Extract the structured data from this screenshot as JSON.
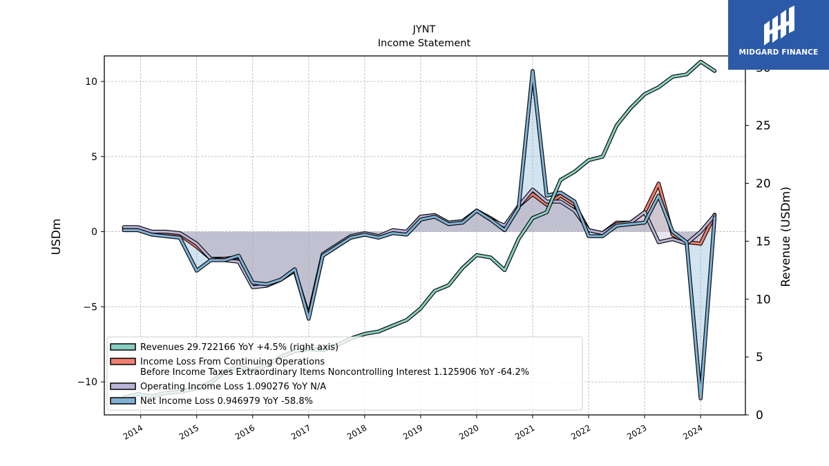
{
  "chart_data": {
    "type": "line",
    "title": "JYNT",
    "subtitle": "Income Statement",
    "ylabel": "USDm",
    "ylabel_right": "Revenue (USDm)",
    "ylim": [
      -12.2,
      11.7
    ],
    "ylim_right": [
      0,
      31.0
    ],
    "yticks": [
      -10,
      -5,
      0,
      5,
      10
    ],
    "yticks_right": [
      0,
      5,
      10,
      15,
      20,
      25,
      30
    ],
    "xlim": [
      2013.35,
      2024.8
    ],
    "xticks": [
      2014,
      2015,
      2016,
      2017,
      2018,
      2019,
      2020,
      2021,
      2022,
      2023,
      2024
    ],
    "x": [
      2013.7,
      2013.95,
      2014.2,
      2014.45,
      2014.7,
      2015.0,
      2015.25,
      2015.5,
      2015.75,
      2016.0,
      2016.25,
      2016.5,
      2016.75,
      2017.0,
      2017.25,
      2017.5,
      2017.75,
      2018.0,
      2018.25,
      2018.5,
      2018.75,
      2019.0,
      2019.25,
      2019.5,
      2019.75,
      2020.0,
      2020.25,
      2020.5,
      2020.75,
      2021.0,
      2021.25,
      2021.5,
      2021.75,
      2022.0,
      2022.25,
      2022.5,
      2022.75,
      2023.0,
      2023.25,
      2023.5,
      2023.75,
      2024.0,
      2024.25
    ],
    "grid": true,
    "legend_position": "lower-left",
    "series": [
      {
        "name": "Revenues  29.722166 YoY +4.5% (right axis)",
        "axis": "right",
        "color": "#88cfc0",
        "values": [
          1.5,
          1.8,
          1.6,
          1.9,
          2.0,
          2.3,
          2.8,
          3.7,
          4.2,
          3.8,
          4.3,
          5.0,
          5.5,
          5.7,
          5.6,
          6.0,
          6.6,
          7.0,
          7.2,
          7.7,
          8.2,
          9.2,
          10.7,
          11.2,
          12.7,
          13.8,
          13.6,
          12.5,
          15.2,
          17.0,
          17.5,
          20.3,
          21.0,
          22.0,
          22.3,
          25.0,
          26.5,
          27.7,
          28.3,
          29.2,
          29.4,
          30.5,
          29.7
        ]
      },
      {
        "name": "Income Loss From Continuing Operations\nBefore Income Taxes Extraordinary Items Noncontrolling Interest  1.125906 YoY -64.2%",
        "axis": "left",
        "color": "#f08070",
        "values": [
          0.2,
          0.2,
          -0.1,
          -0.1,
          -0.2,
          -1.0,
          -1.8,
          -1.8,
          -1.7,
          -3.6,
          -3.6,
          -3.2,
          -2.6,
          -5.7,
          -1.6,
          -1.0,
          -0.4,
          -0.2,
          -0.3,
          0.0,
          0.0,
          1.0,
          1.1,
          0.6,
          0.7,
          1.4,
          0.9,
          0.3,
          1.7,
          2.5,
          1.8,
          2.4,
          1.8,
          0.1,
          -0.1,
          0.6,
          0.6,
          1.3,
          3.2,
          -0.2,
          -0.7,
          -0.8,
          1.13
        ]
      },
      {
        "name": "Operating Income Loss  1.090276 YoY N/A",
        "axis": "left",
        "color": "#b8b4d8",
        "values": [
          0.3,
          0.3,
          0.0,
          0.0,
          -0.1,
          -0.8,
          -1.8,
          -1.9,
          -2.0,
          -3.7,
          -3.6,
          -3.2,
          -2.6,
          -5.6,
          -1.5,
          -0.9,
          -0.3,
          -0.1,
          -0.3,
          0.1,
          0.0,
          1.0,
          1.1,
          0.6,
          0.7,
          1.4,
          0.8,
          0.4,
          1.7,
          2.8,
          2.0,
          2.0,
          1.4,
          0.1,
          -0.1,
          0.5,
          0.6,
          1.3,
          -0.7,
          -0.5,
          -0.8,
          0.0,
          1.09
        ]
      },
      {
        "name": "Net Income Loss  0.946979 YoY -58.8%",
        "axis": "left",
        "color": "#7fb1d4",
        "values": [
          0.1,
          0.1,
          -0.2,
          -0.3,
          -0.4,
          -2.6,
          -1.9,
          -1.9,
          -1.6,
          -3.4,
          -3.5,
          -3.2,
          -2.5,
          -5.8,
          -1.6,
          -1.0,
          -0.4,
          -0.2,
          -0.4,
          -0.1,
          -0.2,
          0.8,
          1.0,
          0.5,
          0.6,
          1.4,
          0.8,
          0.1,
          1.6,
          10.7,
          2.4,
          2.6,
          2.0,
          -0.3,
          -0.3,
          0.4,
          0.5,
          0.6,
          2.4,
          0.0,
          -0.7,
          -11.1,
          0.95
        ]
      }
    ]
  },
  "logo": {
    "name": "MIDGARD FINANCE",
    "background": "#2c5aa8"
  }
}
